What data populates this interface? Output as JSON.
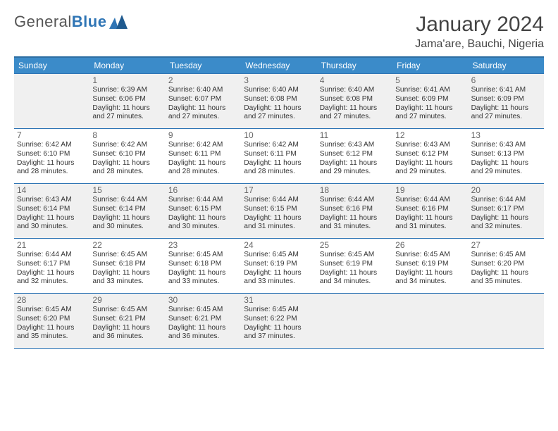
{
  "logo": {
    "part1": "General",
    "part2": "Blue"
  },
  "title": "January 2024",
  "location": "Jama'are, Bauchi, Nigeria",
  "columns": [
    "Sunday",
    "Monday",
    "Tuesday",
    "Wednesday",
    "Thursday",
    "Friday",
    "Saturday"
  ],
  "colors": {
    "header_bg": "#3b8bc9",
    "border": "#2f75b5",
    "shaded_bg": "#f0f0f0",
    "text": "#333333"
  },
  "start_offset": 1,
  "days": [
    {
      "n": 1,
      "sr": "6:39 AM",
      "ss": "6:06 PM",
      "dl": "11 hours and 27 minutes."
    },
    {
      "n": 2,
      "sr": "6:40 AM",
      "ss": "6:07 PM",
      "dl": "11 hours and 27 minutes."
    },
    {
      "n": 3,
      "sr": "6:40 AM",
      "ss": "6:08 PM",
      "dl": "11 hours and 27 minutes."
    },
    {
      "n": 4,
      "sr": "6:40 AM",
      "ss": "6:08 PM",
      "dl": "11 hours and 27 minutes."
    },
    {
      "n": 5,
      "sr": "6:41 AM",
      "ss": "6:09 PM",
      "dl": "11 hours and 27 minutes."
    },
    {
      "n": 6,
      "sr": "6:41 AM",
      "ss": "6:09 PM",
      "dl": "11 hours and 27 minutes."
    },
    {
      "n": 7,
      "sr": "6:42 AM",
      "ss": "6:10 PM",
      "dl": "11 hours and 28 minutes."
    },
    {
      "n": 8,
      "sr": "6:42 AM",
      "ss": "6:10 PM",
      "dl": "11 hours and 28 minutes."
    },
    {
      "n": 9,
      "sr": "6:42 AM",
      "ss": "6:11 PM",
      "dl": "11 hours and 28 minutes."
    },
    {
      "n": 10,
      "sr": "6:42 AM",
      "ss": "6:11 PM",
      "dl": "11 hours and 28 minutes."
    },
    {
      "n": 11,
      "sr": "6:43 AM",
      "ss": "6:12 PM",
      "dl": "11 hours and 29 minutes."
    },
    {
      "n": 12,
      "sr": "6:43 AM",
      "ss": "6:12 PM",
      "dl": "11 hours and 29 minutes."
    },
    {
      "n": 13,
      "sr": "6:43 AM",
      "ss": "6:13 PM",
      "dl": "11 hours and 29 minutes."
    },
    {
      "n": 14,
      "sr": "6:43 AM",
      "ss": "6:14 PM",
      "dl": "11 hours and 30 minutes."
    },
    {
      "n": 15,
      "sr": "6:44 AM",
      "ss": "6:14 PM",
      "dl": "11 hours and 30 minutes."
    },
    {
      "n": 16,
      "sr": "6:44 AM",
      "ss": "6:15 PM",
      "dl": "11 hours and 30 minutes."
    },
    {
      "n": 17,
      "sr": "6:44 AM",
      "ss": "6:15 PM",
      "dl": "11 hours and 31 minutes."
    },
    {
      "n": 18,
      "sr": "6:44 AM",
      "ss": "6:16 PM",
      "dl": "11 hours and 31 minutes."
    },
    {
      "n": 19,
      "sr": "6:44 AM",
      "ss": "6:16 PM",
      "dl": "11 hours and 31 minutes."
    },
    {
      "n": 20,
      "sr": "6:44 AM",
      "ss": "6:17 PM",
      "dl": "11 hours and 32 minutes."
    },
    {
      "n": 21,
      "sr": "6:44 AM",
      "ss": "6:17 PM",
      "dl": "11 hours and 32 minutes."
    },
    {
      "n": 22,
      "sr": "6:45 AM",
      "ss": "6:18 PM",
      "dl": "11 hours and 33 minutes."
    },
    {
      "n": 23,
      "sr": "6:45 AM",
      "ss": "6:18 PM",
      "dl": "11 hours and 33 minutes."
    },
    {
      "n": 24,
      "sr": "6:45 AM",
      "ss": "6:19 PM",
      "dl": "11 hours and 33 minutes."
    },
    {
      "n": 25,
      "sr": "6:45 AM",
      "ss": "6:19 PM",
      "dl": "11 hours and 34 minutes."
    },
    {
      "n": 26,
      "sr": "6:45 AM",
      "ss": "6:19 PM",
      "dl": "11 hours and 34 minutes."
    },
    {
      "n": 27,
      "sr": "6:45 AM",
      "ss": "6:20 PM",
      "dl": "11 hours and 35 minutes."
    },
    {
      "n": 28,
      "sr": "6:45 AM",
      "ss": "6:20 PM",
      "dl": "11 hours and 35 minutes."
    },
    {
      "n": 29,
      "sr": "6:45 AM",
      "ss": "6:21 PM",
      "dl": "11 hours and 36 minutes."
    },
    {
      "n": 30,
      "sr": "6:45 AM",
      "ss": "6:21 PM",
      "dl": "11 hours and 36 minutes."
    },
    {
      "n": 31,
      "sr": "6:45 AM",
      "ss": "6:22 PM",
      "dl": "11 hours and 37 minutes."
    }
  ],
  "labels": {
    "sunrise": "Sunrise: ",
    "sunset": "Sunset: ",
    "daylight": "Daylight: "
  }
}
